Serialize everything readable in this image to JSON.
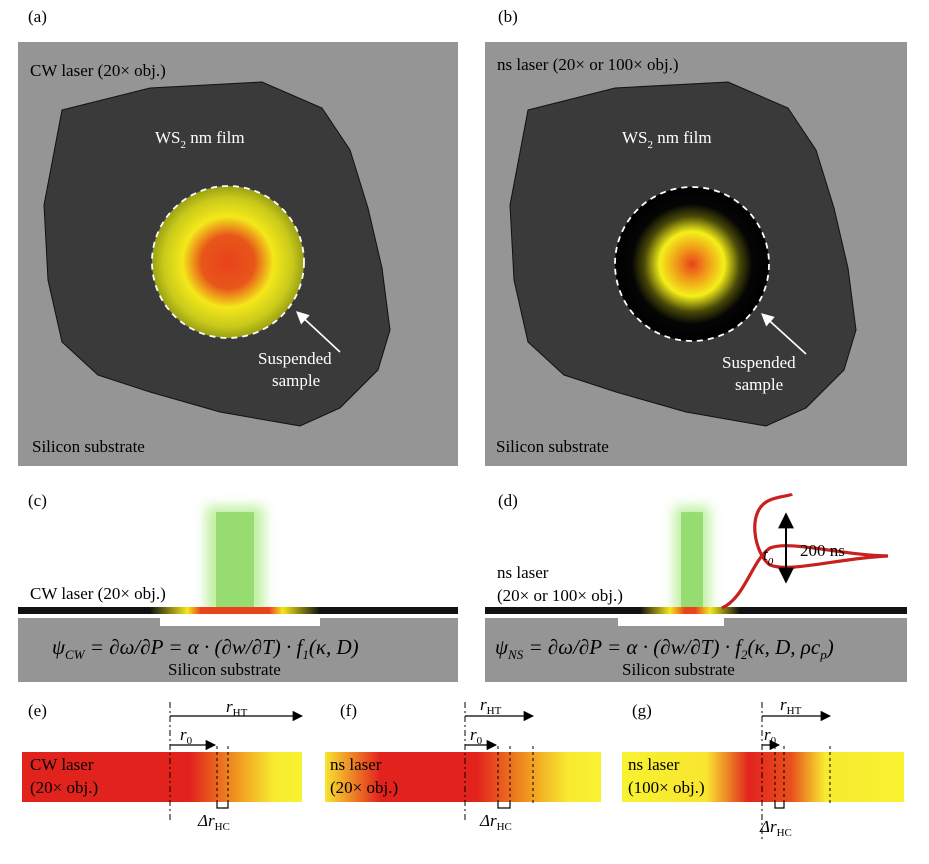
{
  "colors": {
    "substrate": "#959595",
    "film": "#3a3a3a",
    "laser_hot": "#e8431a",
    "laser_cool": "#f2f21a",
    "beam": "#8fe05a",
    "pulse": "#c8201e"
  },
  "panels": {
    "a": {
      "tag": "(a)",
      "laser_label": "CW laser (20× obj.)",
      "film_label_main": "WS",
      "film_label_sub": "2",
      "film_label_rest": " nm film",
      "suspended_line1": "Suspended",
      "suspended_line2": "sample",
      "substrate_label": "Silicon substrate"
    },
    "b": {
      "tag": "(b)",
      "laser_label": "ns laser (20× or 100× obj.)",
      "film_label_main": "WS",
      "film_label_sub": "2",
      "film_label_rest": " nm film",
      "suspended_line1": "Suspended",
      "suspended_line2": "sample",
      "substrate_label": "Silicon substrate"
    },
    "c": {
      "tag": "(c)",
      "laser_label": "CW laser (20× obj.)",
      "equation_psi_sub": "CW",
      "equation_rest": " = ∂ω/∂P = α · (∂w/∂T) · f",
      "equation_f_sub": "1",
      "equation_args": "(κ, D)",
      "substrate_label": "Silicon substrate"
    },
    "d": {
      "tag": "(d)",
      "laser_label_line1": "ns laser",
      "laser_label_line2": "(20× or 100× obj.)",
      "pulse_t0": "t",
      "pulse_t0_sub": "0",
      "pulse_duration": "200 ns",
      "equation_psi_sub": "NS",
      "equation_rest": " = ∂ω/∂P = α · (∂w/∂T) · f",
      "equation_f_sub": "2",
      "equation_args": "(κ, D, ρc",
      "equation_args_sub": "p",
      "equation_args_close": ")",
      "substrate_label": "Silicon substrate"
    },
    "e": {
      "tag": "(e)",
      "laser_line1": "CW laser",
      "laser_line2": "(20× obj.)",
      "r_ht": "r",
      "r_ht_sub": "HT",
      "r_0": "r",
      "r_0_sub": "0",
      "delta_r": "Δr",
      "delta_r_sub": "HC"
    },
    "f": {
      "tag": "(f)",
      "laser_line1": "ns laser",
      "laser_line2": "(20× obj.)",
      "r_ht": "r",
      "r_ht_sub": "HT",
      "r_0": "r",
      "r_0_sub": "0",
      "delta_r": "Δr",
      "delta_r_sub": "HC"
    },
    "g": {
      "tag": "(g)",
      "laser_line1": "ns laser",
      "laser_line2": "(100× obj.)",
      "r_ht": "r",
      "r_ht_sub": "HT",
      "r_0": "r",
      "r_0_sub": "0",
      "delta_r": "Δr",
      "delta_r_sub": "HC"
    }
  }
}
